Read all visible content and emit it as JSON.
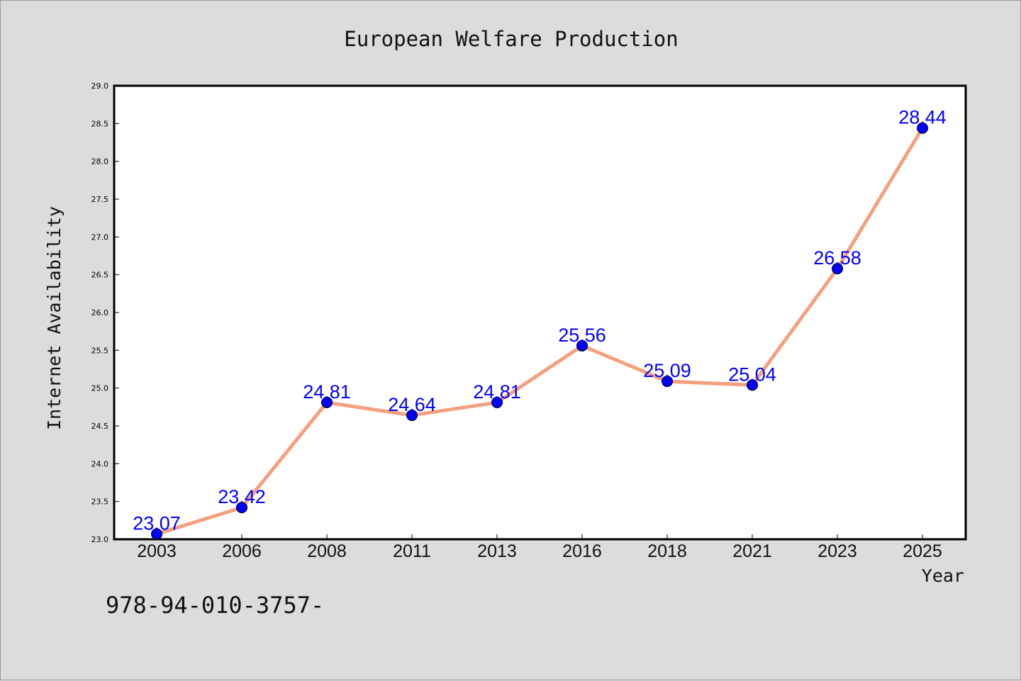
{
  "chart_data": {
    "type": "line",
    "title": "European Welfare Production",
    "xlabel": "Year",
    "ylabel": "Internet Availability",
    "x": [
      "2003",
      "2006",
      "2008",
      "2011",
      "2013",
      "2016",
      "2018",
      "2021",
      "2023",
      "2025"
    ],
    "series": [
      {
        "values": [
          23.07,
          23.42,
          24.81,
          24.64,
          24.81,
          25.56,
          25.09,
          25.04,
          26.58,
          28.44
        ]
      }
    ],
    "data_labels": [
      "23.07",
      "23.42",
      "24.81",
      "24.64",
      "24.81",
      "25.56",
      "25.09",
      "25.04",
      "26.58",
      "28.44"
    ],
    "ylim": [
      23.0,
      29.0
    ],
    "yticks": [
      23.0,
      23.5,
      24.0,
      24.5,
      25.0,
      25.5,
      26.0,
      26.5,
      27.0,
      27.5,
      28.0,
      28.5,
      29.0
    ],
    "ytick_labels": [
      "23.0",
      "23.5",
      "24.0",
      "24.5",
      "25.0",
      "25.5",
      "26.0",
      "26.5",
      "27.0",
      "27.5",
      "28.0",
      "28.5",
      "29.0"
    ],
    "grid": false,
    "colors": {
      "line": "#f4a07f",
      "marker": "#0000ff",
      "label": "#0000ff",
      "background": "#dcdcdc"
    }
  },
  "footer": {
    "isbn_text": "978-94-010-3757-"
  }
}
